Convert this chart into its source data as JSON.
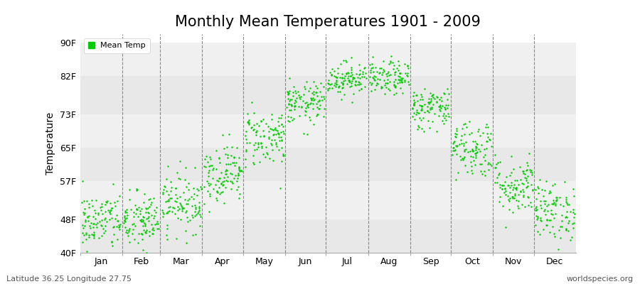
{
  "title": "Monthly Mean Temperatures 1901 - 2009",
  "ylabel": "Temperature",
  "yticks": [
    40,
    48,
    57,
    65,
    73,
    82,
    90
  ],
  "ytick_labels": [
    "40F",
    "48F",
    "57F",
    "65F",
    "73F",
    "82F",
    "90F"
  ],
  "ylim": [
    40,
    92
  ],
  "months": [
    "Jan",
    "Feb",
    "Mar",
    "Apr",
    "May",
    "Jun",
    "Jul",
    "Aug",
    "Sep",
    "Oct",
    "Nov",
    "Dec"
  ],
  "month_days": [
    31,
    28,
    31,
    30,
    31,
    30,
    31,
    31,
    30,
    31,
    30,
    31
  ],
  "dot_color": "#00cc00",
  "dot_size": 3,
  "background_color": "#ffffff",
  "band_color1": "#e8e8e8",
  "band_color2": "#f0f0f0",
  "title_fontsize": 15,
  "legend_label": "Mean Temp",
  "subtitle_left": "Latitude 36.25 Longitude 27.75",
  "subtitle_right": "worldspecies.org",
  "monthly_means": [
    47.5,
    47.5,
    52.0,
    59.0,
    67.5,
    75.5,
    81.5,
    81.5,
    74.5,
    65.0,
    56.0,
    50.0
  ],
  "monthly_std": [
    3.5,
    3.5,
    3.5,
    3.5,
    3.5,
    2.5,
    2.0,
    2.0,
    2.5,
    3.5,
    3.5,
    3.5
  ],
  "year_start": 1901,
  "year_end": 2009
}
